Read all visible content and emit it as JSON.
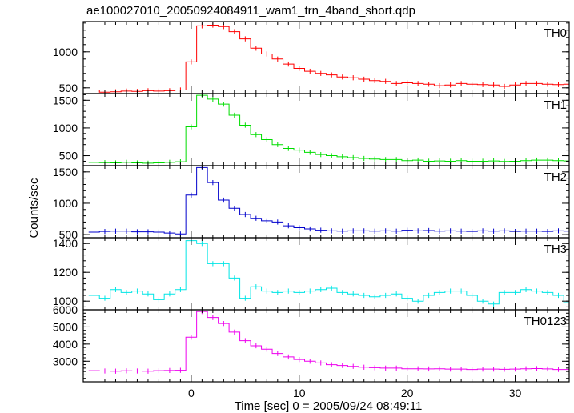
{
  "title": "ae100027010_20050924084911_wam1_trn_4band_short.qdp",
  "xlabel": "Time [sec] 0 = 2005/09/24 08:49:11",
  "ylabel": "Counts/sec",
  "chart_data": {
    "type": "line",
    "style": "step-histogram with error bars",
    "xlim": [
      -10,
      35
    ],
    "x_ticks": [
      0,
      10,
      20,
      30
    ],
    "bin_start": -9.5,
    "bin_width": 1,
    "panels": [
      {
        "name": "TH0",
        "color": "#ff0000",
        "ylim": [
          420,
          1420
        ],
        "y_ticks": [
          500,
          1000
        ],
        "values": [
          470,
          440,
          445,
          455,
          450,
          460,
          455,
          460,
          470,
          860,
          1360,
          1370,
          1350,
          1280,
          1180,
          1050,
          970,
          900,
          830,
          770,
          730,
          700,
          680,
          650,
          640,
          620,
          600,
          590,
          560,
          570,
          560,
          550,
          530,
          540,
          560,
          550,
          545,
          540,
          520,
          540,
          560,
          560,
          550,
          545,
          550,
          560,
          580,
          590,
          560,
          550,
          555,
          560,
          545,
          550,
          545,
          550,
          580,
          560,
          540,
          520,
          540,
          550,
          580,
          570,
          550,
          530,
          540,
          510,
          520,
          520,
          500,
          520,
          540,
          540,
          530,
          520,
          520,
          510,
          500,
          520,
          500,
          500,
          540,
          530,
          560,
          570,
          560,
          520,
          540,
          520
        ]
      },
      {
        "name": "TH1",
        "color": "#00dd00",
        "ylim": [
          320,
          1620
        ],
        "y_ticks": [
          500,
          1000,
          1500
        ],
        "values": [
          380,
          375,
          370,
          380,
          370,
          365,
          370,
          380,
          390,
          1020,
          1590,
          1520,
          1430,
          1230,
          1050,
          880,
          790,
          700,
          630,
          600,
          560,
          520,
          500,
          480,
          465,
          450,
          440,
          430,
          430,
          410,
          420,
          400,
          405,
          400,
          410,
          400,
          400,
          405,
          395,
          400,
          410,
          420,
          420,
          410,
          405,
          400,
          410,
          400,
          395,
          400,
          405,
          400,
          395,
          410,
          400,
          400,
          395,
          395,
          395,
          400,
          405,
          400,
          395,
          400,
          380,
          380,
          380,
          390,
          390,
          390,
          400,
          390,
          380,
          380,
          390,
          380,
          380,
          390,
          395,
          380,
          390,
          390,
          395,
          380,
          385,
          380,
          380,
          390,
          380,
          390
        ]
      },
      {
        "name": "TH2",
        "color": "#0000cc",
        "ylim": [
          450,
          1600
        ],
        "y_ticks": [
          500,
          1000,
          1500
        ],
        "values": [
          540,
          550,
          555,
          555,
          545,
          545,
          540,
          525,
          510,
          1130,
          1570,
          1330,
          1050,
          920,
          820,
          760,
          720,
          700,
          640,
          610,
          590,
          570,
          560,
          555,
          560,
          560,
          555,
          560,
          555,
          570,
          560,
          565,
          555,
          560,
          555,
          550,
          560,
          555,
          560,
          550,
          555,
          555,
          550,
          560,
          555,
          545,
          540,
          545,
          555,
          540,
          540,
          550,
          540,
          555,
          545,
          550,
          540,
          545,
          550,
          540,
          545,
          540,
          530,
          540,
          535,
          535,
          525,
          520,
          550,
          560,
          555,
          545,
          535,
          540,
          545,
          540,
          530,
          525,
          560,
          540,
          530,
          545,
          550,
          545,
          555,
          545,
          545,
          540,
          545,
          540
        ]
      },
      {
        "name": "TH3",
        "color": "#00e5e5",
        "ylim": [
          940,
          1440
        ],
        "y_ticks": [
          1000,
          1200,
          1400
        ],
        "values": [
          1040,
          1020,
          1080,
          1060,
          1070,
          1050,
          1010,
          1050,
          1080,
          1420,
          1400,
          1260,
          1260,
          1160,
          1020,
          1100,
          1070,
          1060,
          1070,
          1060,
          1070,
          1080,
          1090,
          1060,
          1050,
          1040,
          1030,
          1040,
          1050,
          1020,
          1000,
          1040,
          1060,
          1070,
          1070,
          1040,
          1000,
          980,
          1060,
          1060,
          1080,
          1070,
          1060,
          1040,
          990,
          1060,
          1050,
          1060,
          1070,
          1020,
          1000,
          1050,
          1040,
          1010,
          1050,
          1050,
          1060,
          1040,
          1080,
          1010,
          1060,
          1000,
          1070,
          1020,
          1060,
          1040,
          990,
          1010,
          1050,
          990,
          1020,
          1060,
          1030,
          1040,
          1050,
          1020,
          1040,
          1000,
          1030,
          1010,
          1020,
          1030,
          1060,
          1050,
          1020,
          990,
          1040,
          1010,
          1020,
          1060
        ]
      },
      {
        "name": "TH0123",
        "color": "#ee00ee",
        "ylim": [
          1800,
          6000
        ],
        "y_ticks": [
          3000,
          4000,
          5000,
          6000
        ],
        "values": [
          2450,
          2430,
          2420,
          2440,
          2430,
          2420,
          2450,
          2460,
          2470,
          4400,
          5900,
          5550,
          5200,
          4700,
          4200,
          3900,
          3700,
          3450,
          3250,
          3100,
          3000,
          2900,
          2800,
          2750,
          2700,
          2650,
          2620,
          2600,
          2600,
          2560,
          2560,
          2550,
          2560,
          2540,
          2540,
          2520,
          2540,
          2540,
          2530,
          2540,
          2560,
          2570,
          2550,
          2520,
          2520,
          2540,
          2560,
          2560,
          2550,
          2530,
          2520,
          2530,
          2540,
          2550,
          2540,
          2540,
          2530,
          2540,
          2540,
          2520,
          2540,
          2540,
          2550,
          2540,
          2530,
          2500,
          2500,
          2500,
          2520,
          2530,
          2550,
          2560,
          2560,
          2520,
          2510,
          2510,
          2500,
          2500,
          2520,
          2500,
          2500,
          2520,
          2550,
          2600,
          2620,
          2560,
          2540,
          2520,
          2440,
          2430
        ]
      }
    ]
  }
}
